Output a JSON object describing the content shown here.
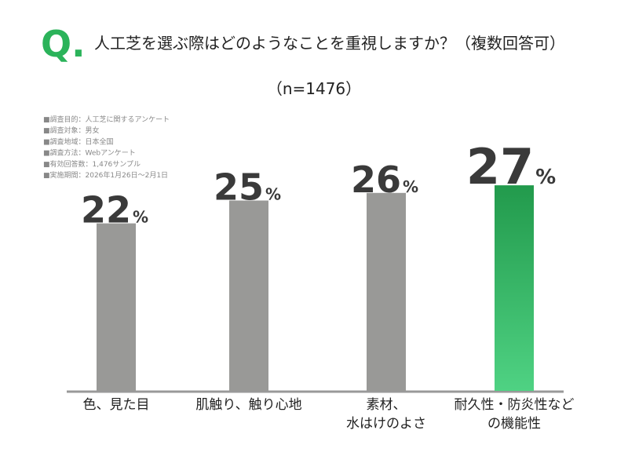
{
  "header": {
    "mark": "Q.",
    "question": "人工芝を選ぶ際はどのようなことを重視しますか？（複数回答可）",
    "sample": "（n=1476）"
  },
  "notes": [
    "■調査目的：人工芝に関するアンケート",
    "■調査対象：男女",
    "■調査地域：日本全国",
    "■調査方法：Webアンケート",
    "■有効回答数：1,476サンプル",
    "■実施期間：2026年1月26日〜2月1日"
  ],
  "chart_data": {
    "type": "bar",
    "categories": [
      "色、見た目",
      "肌触り、触り心地",
      "素材、\n水はけのよさ",
      "耐久性・防炎性など\nの機能性"
    ],
    "values": [
      22,
      25,
      26,
      27
    ],
    "value_labels": [
      "22%",
      "25%",
      "26%",
      "27%"
    ],
    "colors": [
      "#999997",
      "#999997",
      "#999997",
      [
        "#229a4c",
        "#4fd283"
      ]
    ],
    "ylim": [
      0,
      30
    ]
  }
}
